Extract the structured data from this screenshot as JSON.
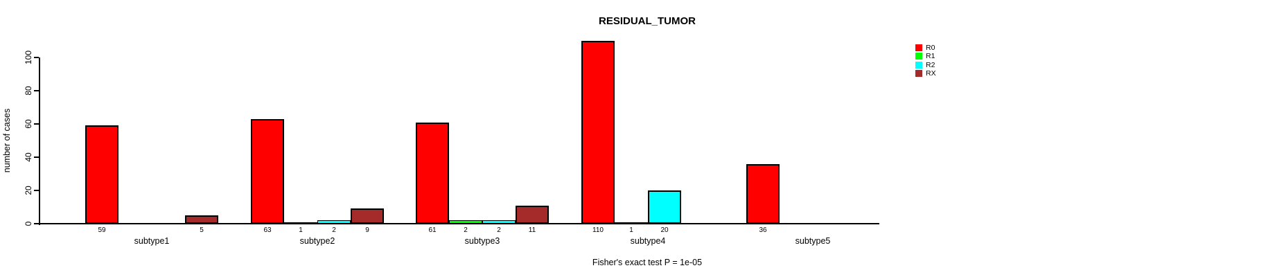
{
  "title": "RESIDUAL_TUMOR",
  "subtitle": "Fisher's exact test P = 1e-05",
  "ylabel": "number of cases",
  "colors": {
    "R0": "#ff0000",
    "R1": "#00ff00",
    "R2": "#00ffff",
    "RX": "#a52a2a",
    "axis": "#000000",
    "background": "#ffffff"
  },
  "chart_data": {
    "type": "bar",
    "grouped": true,
    "title": "RESIDUAL_TUMOR",
    "xlabel": "",
    "ylabel": "number of cases",
    "annotation": "Fisher's exact test P = 1e-05",
    "categories": [
      "subtype1",
      "subtype2",
      "subtype3",
      "subtype4",
      "subtype5"
    ],
    "series": [
      {
        "name": "R0",
        "color": "#ff0000",
        "values": [
          59,
          63,
          61,
          110,
          36
        ]
      },
      {
        "name": "R1",
        "color": "#00ff00",
        "values": [
          0,
          1,
          2,
          1,
          0
        ]
      },
      {
        "name": "R2",
        "color": "#00ffff",
        "values": [
          0,
          2,
          2,
          20,
          0
        ]
      },
      {
        "name": "RX",
        "color": "#a52a2a",
        "values": [
          5,
          9,
          11,
          0,
          0
        ]
      }
    ],
    "bar_labels_note": "each nonzero bar is labeled with its value below the axis; zero bars are not drawn and not labeled",
    "yticks": [
      0,
      20,
      40,
      60,
      80,
      100
    ],
    "ylim": [
      0,
      110
    ],
    "grid": false,
    "legend": [
      "R0",
      "R1",
      "R2",
      "RX"
    ],
    "legend_position": "right"
  }
}
